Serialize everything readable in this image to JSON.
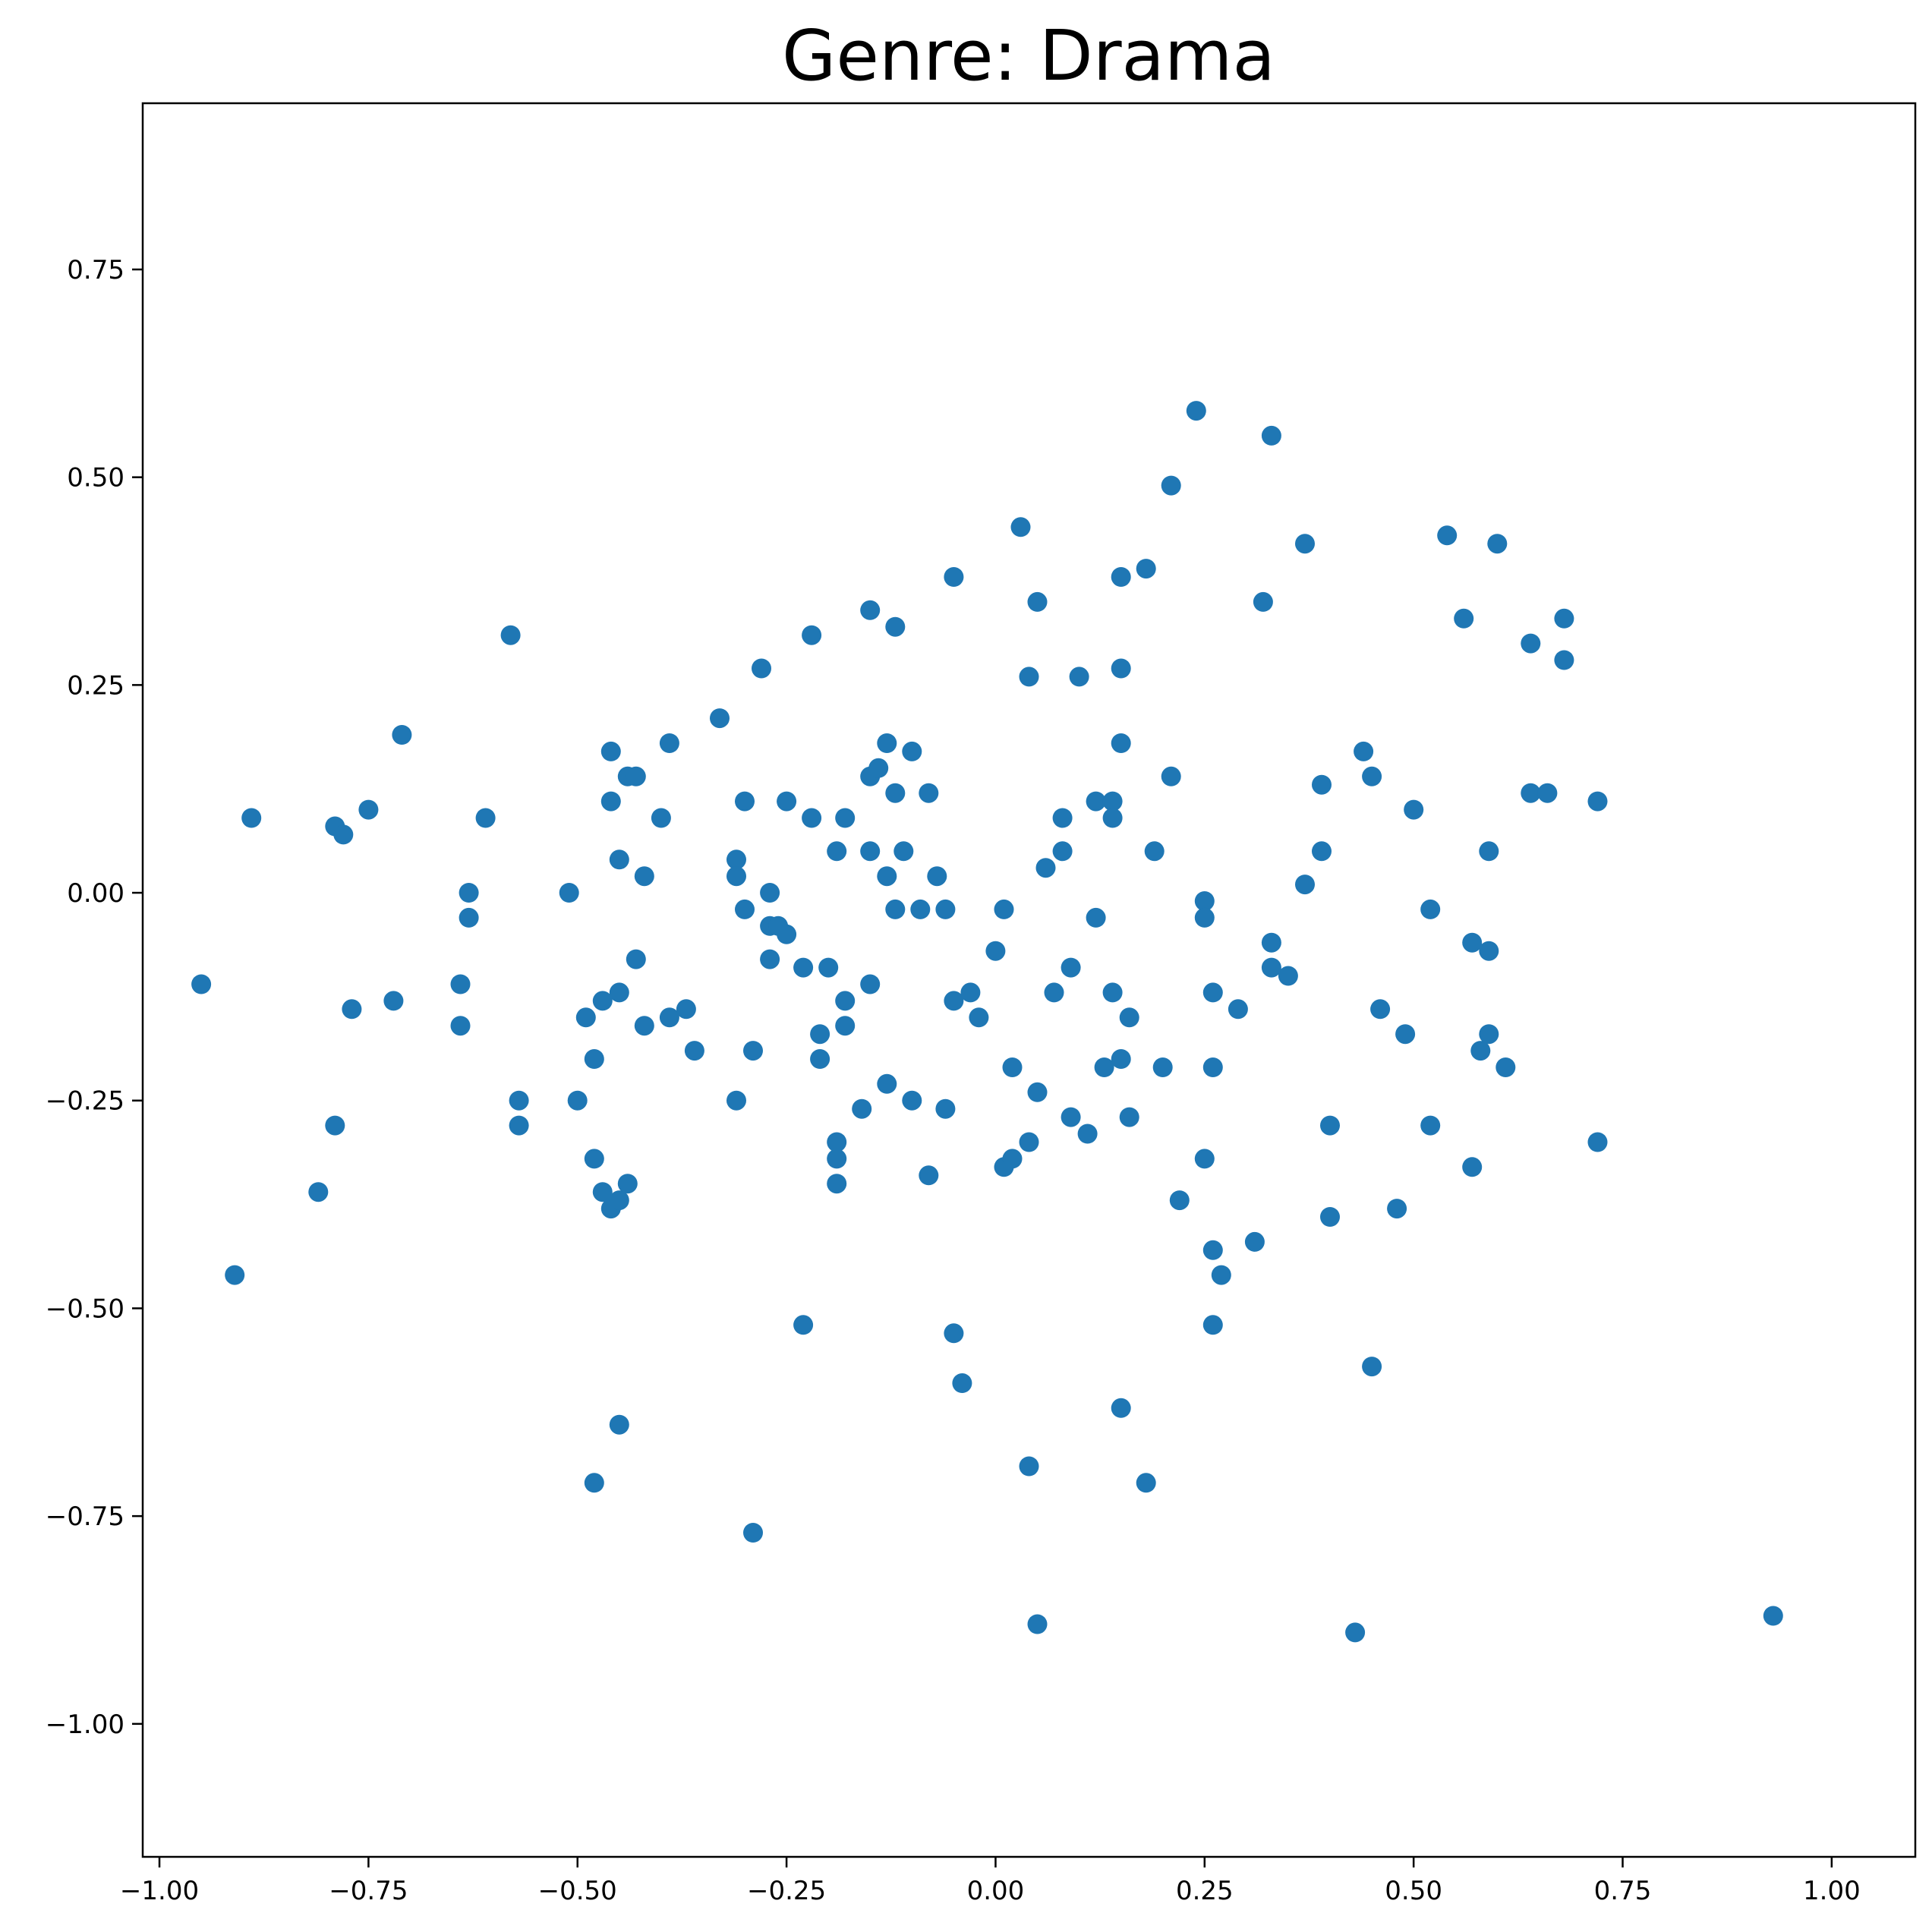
{
  "chart_data": {
    "type": "scatter",
    "title": "Genre: Drama",
    "xlabel": "",
    "ylabel": "",
    "xlim": [
      -1.02,
      1.1
    ],
    "ylim": [
      -1.16,
      0.95
    ],
    "xticks": [
      -1.0,
      -0.75,
      -0.5,
      -0.25,
      0.0,
      0.25,
      0.5,
      0.75,
      1.0
    ],
    "xtick_labels": [
      "−1.00",
      "−0.75",
      "−0.50",
      "−0.25",
      "0.00",
      "0.25",
      "0.50",
      "0.75",
      "1.00"
    ],
    "yticks": [
      0.75,
      0.5,
      0.25,
      0.0,
      -0.25,
      -0.5,
      -0.75,
      -1.0
    ],
    "ytick_labels": [
      "0.75",
      "0.50",
      "0.25",
      "0.00",
      "−0.25",
      "−0.50",
      "−0.75",
      "−1.00"
    ],
    "grid": false,
    "color": "#1f77b4",
    "points": [
      [
        -0.95,
        -0.11
      ],
      [
        -0.91,
        -0.46
      ],
      [
        -0.89,
        0.09
      ],
      [
        -0.81,
        -0.36
      ],
      [
        -0.79,
        -0.28
      ],
      [
        -0.79,
        0.08
      ],
      [
        -0.78,
        0.07
      ],
      [
        -0.77,
        -0.14
      ],
      [
        -0.75,
        0.1
      ],
      [
        -0.72,
        -0.13
      ],
      [
        -0.71,
        0.19
      ],
      [
        -0.64,
        -0.11
      ],
      [
        -0.64,
        -0.16
      ],
      [
        -0.63,
        0.0
      ],
      [
        -0.63,
        -0.03
      ],
      [
        -0.61,
        0.09
      ],
      [
        -0.58,
        0.31
      ],
      [
        -0.57,
        -0.25
      ],
      [
        -0.57,
        -0.28
      ],
      [
        -0.51,
        0.0
      ],
      [
        -0.5,
        -0.25
      ],
      [
        -0.49,
        -0.15
      ],
      [
        -0.48,
        -0.2
      ],
      [
        -0.48,
        -0.32
      ],
      [
        -0.47,
        -0.13
      ],
      [
        -0.47,
        -0.36
      ],
      [
        -0.46,
        -0.38
      ],
      [
        -0.46,
        0.11
      ],
      [
        -0.46,
        0.17
      ],
      [
        -0.45,
        -0.12
      ],
      [
        -0.45,
        -0.37
      ],
      [
        -0.45,
        0.04
      ],
      [
        -0.44,
        0.14
      ],
      [
        -0.44,
        -0.35
      ],
      [
        -0.43,
        0.14
      ],
      [
        -0.43,
        -0.08
      ],
      [
        -0.42,
        -0.16
      ],
      [
        -0.42,
        0.02
      ],
      [
        -0.4,
        0.09
      ],
      [
        -0.39,
        -0.15
      ],
      [
        -0.39,
        0.18
      ],
      [
        -0.37,
        -0.14
      ],
      [
        -0.36,
        -0.19
      ],
      [
        -0.33,
        0.21
      ],
      [
        -0.31,
        0.04
      ],
      [
        -0.31,
        0.02
      ],
      [
        -0.31,
        -0.25
      ],
      [
        -0.3,
        -0.02
      ],
      [
        -0.3,
        0.11
      ],
      [
        -0.29,
        -0.19
      ],
      [
        -0.28,
        0.27
      ],
      [
        -0.27,
        -0.04
      ],
      [
        -0.27,
        -0.08
      ],
      [
        -0.27,
        0.0
      ],
      [
        -0.26,
        -0.04
      ],
      [
        -0.25,
        -0.05
      ],
      [
        -0.25,
        0.11
      ],
      [
        -0.23,
        -0.09
      ],
      [
        -0.22,
        0.31
      ],
      [
        -0.22,
        0.09
      ],
      [
        -0.21,
        -0.2
      ],
      [
        -0.21,
        -0.17
      ],
      [
        -0.2,
        -0.09
      ],
      [
        -0.19,
        0.05
      ],
      [
        -0.19,
        -0.3
      ],
      [
        -0.19,
        -0.32
      ],
      [
        -0.19,
        -0.35
      ],
      [
        -0.18,
        -0.13
      ],
      [
        -0.18,
        -0.16
      ],
      [
        -0.18,
        0.09
      ],
      [
        -0.16,
        -0.26
      ],
      [
        -0.15,
        0.14
      ],
      [
        -0.15,
        0.05
      ],
      [
        -0.15,
        -0.11
      ],
      [
        -0.15,
        0.34
      ],
      [
        -0.14,
        0.15
      ],
      [
        -0.13,
        0.18
      ],
      [
        -0.13,
        0.02
      ],
      [
        -0.13,
        -0.23
      ],
      [
        -0.12,
        0.12
      ],
      [
        -0.12,
        0.32
      ],
      [
        -0.12,
        -0.02
      ],
      [
        -0.11,
        0.05
      ],
      [
        -0.1,
        0.17
      ],
      [
        -0.1,
        -0.25
      ],
      [
        -0.09,
        -0.02
      ],
      [
        -0.08,
        0.12
      ],
      [
        -0.08,
        -0.34
      ],
      [
        -0.07,
        0.02
      ],
      [
        -0.06,
        -0.02
      ],
      [
        -0.06,
        -0.26
      ],
      [
        -0.05,
        -0.13
      ],
      [
        -0.05,
        0.38
      ],
      [
        -0.03,
        -0.12
      ],
      [
        -0.02,
        -0.15
      ],
      [
        0.0,
        -0.07
      ],
      [
        0.01,
        -0.02
      ],
      [
        0.01,
        -0.33
      ],
      [
        0.02,
        -0.32
      ],
      [
        0.02,
        -0.21
      ],
      [
        0.03,
        0.44
      ],
      [
        0.04,
        0.26
      ],
      [
        0.04,
        -0.3
      ],
      [
        0.05,
        0.35
      ],
      [
        0.05,
        -0.24
      ],
      [
        0.06,
        0.03
      ],
      [
        0.07,
        -0.12
      ],
      [
        0.08,
        0.09
      ],
      [
        0.08,
        0.05
      ],
      [
        0.09,
        -0.27
      ],
      [
        0.09,
        -0.09
      ],
      [
        0.1,
        0.26
      ],
      [
        0.11,
        -0.29
      ],
      [
        0.12,
        -0.03
      ],
      [
        0.12,
        0.11
      ],
      [
        0.13,
        -0.21
      ],
      [
        0.14,
        -0.12
      ],
      [
        0.14,
        0.11
      ],
      [
        0.14,
        0.09
      ],
      [
        0.15,
        0.27
      ],
      [
        0.15,
        0.18
      ],
      [
        0.15,
        0.38
      ],
      [
        0.15,
        -0.2
      ],
      [
        0.16,
        -0.15
      ],
      [
        0.16,
        -0.27
      ],
      [
        0.18,
        0.39
      ],
      [
        0.19,
        0.05
      ],
      [
        0.2,
        -0.21
      ],
      [
        0.21,
        0.49
      ],
      [
        0.21,
        0.14
      ],
      [
        0.22,
        -0.37
      ],
      [
        0.24,
        0.58
      ],
      [
        0.25,
        -0.01
      ],
      [
        0.25,
        -0.32
      ],
      [
        0.25,
        -0.03
      ],
      [
        0.26,
        -0.12
      ],
      [
        0.26,
        -0.21
      ],
      [
        0.26,
        -0.43
      ],
      [
        0.26,
        -0.52
      ],
      [
        0.27,
        -0.46
      ],
      [
        0.29,
        -0.14
      ],
      [
        0.31,
        -0.42
      ],
      [
        0.32,
        0.35
      ],
      [
        0.33,
        0.55
      ],
      [
        0.33,
        -0.06
      ],
      [
        0.33,
        -0.09
      ],
      [
        0.35,
        -0.1
      ],
      [
        0.37,
        0.42
      ],
      [
        0.37,
        0.01
      ],
      [
        0.39,
        0.13
      ],
      [
        0.39,
        0.05
      ],
      [
        0.4,
        -0.28
      ],
      [
        0.4,
        -0.39
      ],
      [
        0.44,
        0.17
      ],
      [
        0.45,
        0.14
      ],
      [
        0.45,
        -0.57
      ],
      [
        0.46,
        -0.14
      ],
      [
        0.48,
        -0.38
      ],
      [
        0.49,
        -0.17
      ],
      [
        0.5,
        0.1
      ],
      [
        0.52,
        -0.02
      ],
      [
        0.52,
        -0.28
      ],
      [
        0.54,
        0.43
      ],
      [
        0.56,
        0.33
      ],
      [
        0.57,
        -0.06
      ],
      [
        0.57,
        -0.33
      ],
      [
        0.58,
        -0.19
      ],
      [
        0.59,
        -0.07
      ],
      [
        0.59,
        0.05
      ],
      [
        0.59,
        -0.17
      ],
      [
        0.6,
        0.42
      ],
      [
        0.61,
        -0.21
      ],
      [
        0.64,
        0.3
      ],
      [
        0.64,
        0.12
      ],
      [
        0.66,
        0.12
      ],
      [
        0.68,
        0.33
      ],
      [
        0.68,
        0.28
      ],
      [
        0.72,
        0.11
      ],
      [
        0.72,
        -0.3
      ],
      [
        0.93,
        -0.87
      ],
      [
        0.05,
        -0.88
      ],
      [
        0.43,
        -0.89
      ],
      [
        -0.45,
        -0.64
      ],
      [
        -0.48,
        -0.71
      ],
      [
        -0.29,
        -0.77
      ],
      [
        0.04,
        -0.69
      ],
      [
        0.15,
        -0.62
      ],
      [
        0.18,
        -0.71
      ],
      [
        -0.04,
        -0.59
      ],
      [
        -0.05,
        -0.53
      ],
      [
        -0.23,
        -0.52
      ]
    ]
  }
}
